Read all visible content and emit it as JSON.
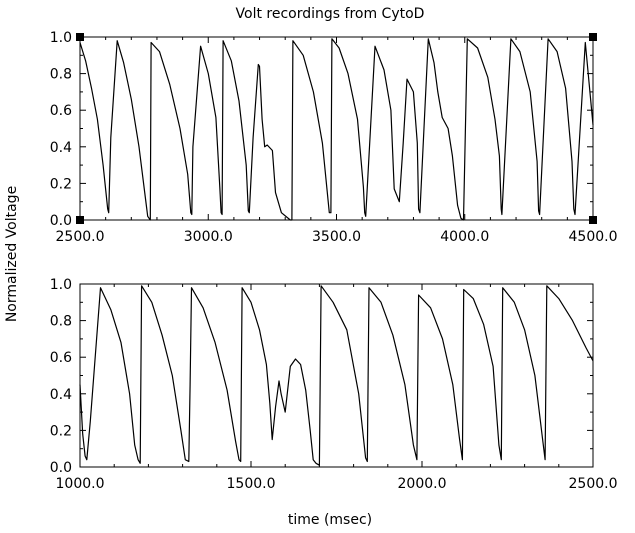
{
  "title": "Volt recordings from CytoD",
  "ylabel": "Normalized Voltage",
  "xlabel": "time (msec)",
  "chart_data": [
    {
      "type": "line",
      "title": "Volt recordings from CytoD",
      "xlabel": "",
      "ylabel": "Normalized Voltage",
      "xlim": [
        2500,
        4500
      ],
      "ylim": [
        0,
        1
      ],
      "x_ticks": [
        "2500.0",
        "3000.0",
        "3500.0",
        "4000.0",
        "4500.0"
      ],
      "y_ticks": [
        "0.0",
        "0.2",
        "0.4",
        "0.6",
        "0.8",
        "1.0"
      ],
      "grid": false,
      "series": [
        {
          "x": [
            2500,
            2522,
            2545,
            2568,
            2590,
            2608,
            2612,
            2620,
            2645,
            2670,
            2700,
            2730,
            2755,
            2764,
            2774,
            2777,
            2810,
            2850,
            2890,
            2920,
            2932,
            2936,
            2940,
            2970,
            3000,
            3030,
            3045,
            3050,
            3054,
            3058,
            3090,
            3120,
            3148,
            3156,
            3160,
            3175,
            3195,
            3200,
            3210,
            3220,
            3230,
            3250,
            3262,
            3285,
            3320,
            3326,
            3330,
            3370,
            3410,
            3445,
            3472,
            3478,
            3482,
            3510,
            3545,
            3582,
            3605,
            3610,
            3614,
            3650,
            3685,
            3712,
            3725,
            3745,
            3760,
            3775,
            3800,
            3815,
            3820,
            3825,
            3858,
            3880,
            3895,
            3912,
            3935,
            3952,
            3972,
            3985,
            3995,
            4010,
            4050,
            4090,
            4118,
            4135,
            4142,
            4145,
            4180,
            4215,
            4255,
            4282,
            4288,
            4292,
            4325,
            4360,
            4393,
            4418,
            4425,
            4430,
            4470,
            4500
          ],
          "y": [
            0.97,
            0.87,
            0.72,
            0.55,
            0.3,
            0.06,
            0.04,
            0.45,
            0.98,
            0.86,
            0.66,
            0.4,
            0.12,
            0.02,
            0.0,
            0.97,
            0.92,
            0.74,
            0.5,
            0.25,
            0.04,
            0.03,
            0.4,
            0.95,
            0.8,
            0.56,
            0.18,
            0.04,
            0.03,
            0.98,
            0.87,
            0.65,
            0.3,
            0.05,
            0.04,
            0.45,
            0.85,
            0.84,
            0.55,
            0.4,
            0.41,
            0.38,
            0.15,
            0.04,
            0.0,
            0.0,
            0.98,
            0.9,
            0.7,
            0.42,
            0.04,
            0.04,
            0.99,
            0.94,
            0.8,
            0.55,
            0.18,
            0.04,
            0.02,
            0.95,
            0.82,
            0.6,
            0.17,
            0.1,
            0.42,
            0.77,
            0.7,
            0.42,
            0.06,
            0.04,
            0.99,
            0.86,
            0.7,
            0.56,
            0.5,
            0.35,
            0.08,
            0.01,
            0.0,
            0.99,
            0.94,
            0.78,
            0.55,
            0.35,
            0.06,
            0.03,
            0.99,
            0.92,
            0.7,
            0.32,
            0.05,
            0.03,
            0.99,
            0.92,
            0.72,
            0.32,
            0.06,
            0.03,
            0.97,
            0.52
          ]
        }
      ]
    },
    {
      "type": "line",
      "title": "",
      "xlabel": "time (msec)",
      "ylabel": "Normalized Voltage",
      "xlim": [
        1000,
        2500
      ],
      "ylim": [
        0,
        1
      ],
      "x_ticks": [
        "1000.0",
        "1500.0",
        "2000.0",
        "2500.0"
      ],
      "y_ticks": [
        "0.0",
        "0.2",
        "0.4",
        "0.6",
        "0.8",
        "1.0"
      ],
      "grid": false,
      "series": [
        {
          "x": [
            1000,
            1008,
            1015,
            1020,
            1030,
            1060,
            1090,
            1120,
            1145,
            1160,
            1170,
            1176,
            1180,
            1210,
            1240,
            1270,
            1295,
            1308,
            1318,
            1322,
            1326,
            1360,
            1395,
            1430,
            1455,
            1465,
            1470,
            1474,
            1500,
            1525,
            1545,
            1555,
            1562,
            1572,
            1582,
            1588,
            1600,
            1615,
            1630,
            1645,
            1660,
            1673,
            1682,
            1690,
            1700,
            1705,
            1740,
            1780,
            1815,
            1835,
            1840,
            1845,
            1880,
            1915,
            1950,
            1975,
            1985,
            1990,
            2025,
            2060,
            2090,
            2110,
            2118,
            2122,
            2150,
            2180,
            2208,
            2225,
            2232,
            2236,
            2270,
            2300,
            2330,
            2352,
            2360,
            2365,
            2400,
            2440,
            2480,
            2500
          ],
          "y": [
            0.45,
            0.18,
            0.06,
            0.04,
            0.25,
            0.98,
            0.86,
            0.68,
            0.4,
            0.12,
            0.04,
            0.02,
            0.99,
            0.9,
            0.72,
            0.5,
            0.2,
            0.04,
            0.03,
            0.45,
            0.98,
            0.87,
            0.68,
            0.42,
            0.14,
            0.04,
            0.03,
            0.98,
            0.9,
            0.75,
            0.56,
            0.35,
            0.15,
            0.33,
            0.47,
            0.4,
            0.3,
            0.55,
            0.59,
            0.56,
            0.42,
            0.2,
            0.04,
            0.02,
            0.01,
            0.99,
            0.9,
            0.75,
            0.4,
            0.05,
            0.03,
            0.98,
            0.9,
            0.72,
            0.45,
            0.12,
            0.04,
            0.94,
            0.87,
            0.7,
            0.45,
            0.15,
            0.04,
            0.97,
            0.92,
            0.78,
            0.55,
            0.12,
            0.04,
            0.98,
            0.9,
            0.75,
            0.5,
            0.16,
            0.04,
            0.99,
            0.92,
            0.8,
            0.65,
            0.58
          ]
        }
      ]
    }
  ]
}
